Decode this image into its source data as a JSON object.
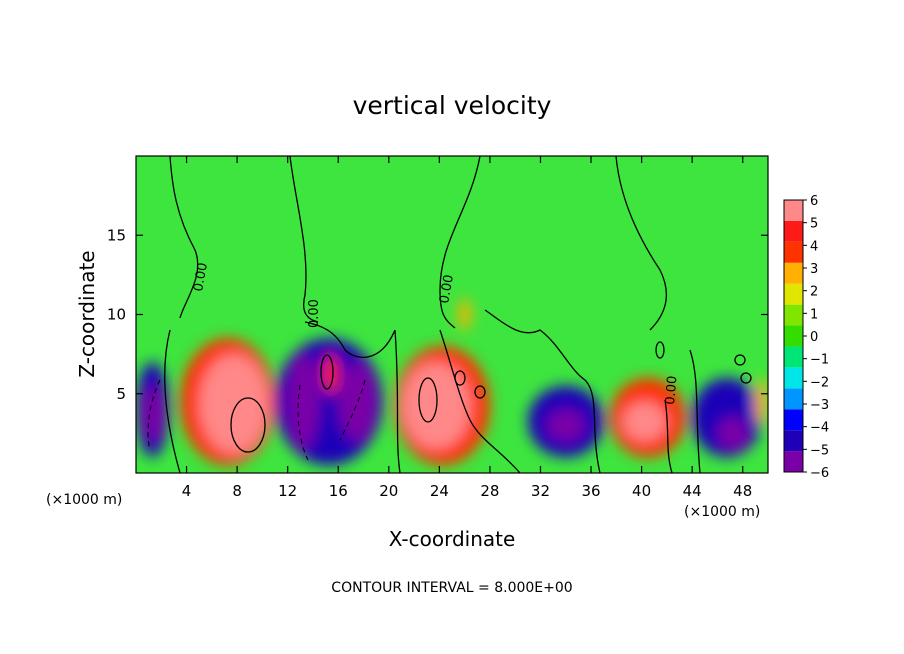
{
  "chart_data": {
    "type": "heatmap",
    "title": "vertical velocity",
    "xlabel": "X-coordinate",
    "ylabel": "Z-coordinate",
    "x_unit_left": "(×1000 m)",
    "x_unit_right": "(×1000 m)",
    "xlim": [
      0,
      50
    ],
    "ylim": [
      0,
      20
    ],
    "x_ticks": [
      4,
      8,
      12,
      16,
      20,
      24,
      28,
      32,
      36,
      40,
      44,
      48
    ],
    "y_ticks": [
      5,
      10,
      15
    ],
    "footer": "CONTOUR INTERVAL = 8.000E+00",
    "contour_labels": [
      "0.00",
      "0.00",
      "0.00",
      "0.00"
    ],
    "colorbar": {
      "levels": [
        -6,
        -5,
        -4,
        -3,
        -2,
        -1,
        0,
        1,
        2,
        3,
        4,
        5,
        6
      ],
      "labels": [
        "6",
        "5",
        "4",
        "3",
        "2",
        "1",
        "0",
        "−1",
        "−2",
        "−3",
        "−4",
        "−5",
        "−6"
      ],
      "colors": [
        "#7a00a8",
        "#1f00b8",
        "#0000ff",
        "#0096ff",
        "#00e6e6",
        "#00e676",
        "#33dd00",
        "#80e600",
        "#e0e600",
        "#ffb000",
        "#ff3300",
        "#ff1a1a",
        "#ff8888"
      ]
    },
    "background_color": "#3ee53e",
    "cells": [
      {
        "x": [
          0.0,
          2.6
        ],
        "z": [
          1.0,
          7.0
        ],
        "w": -5
      },
      {
        "x": [
          0.5,
          2.2
        ],
        "z": [
          2.0,
          5.5
        ],
        "w": -6
      },
      {
        "x": [
          3.5,
          11.0
        ],
        "z": [
          0.5,
          8.5
        ],
        "w": 4
      },
      {
        "x": [
          5.0,
          10.5
        ],
        "z": [
          1.2,
          7.5
        ],
        "w": 6
      },
      {
        "x": [
          11.0,
          19.5
        ],
        "z": [
          0.5,
          8.5
        ],
        "w": -5
      },
      {
        "x": [
          12.0,
          14.5
        ],
        "z": [
          1.5,
          7.5
        ],
        "w": -6
      },
      {
        "x": [
          14.8,
          16.0
        ],
        "z": [
          5.0,
          7.5
        ],
        "w": 5
      },
      {
        "x": [
          16.0,
          19.0
        ],
        "z": [
          2.0,
          7.0
        ],
        "w": -6
      },
      {
        "x": [
          20.5,
          28.0
        ],
        "z": [
          0.5,
          8.0
        ],
        "w": 4
      },
      {
        "x": [
          21.0,
          26.5
        ],
        "z": [
          1.5,
          7.0
        ],
        "w": 6
      },
      {
        "x": [
          25.5,
          26.5
        ],
        "z": [
          9.0,
          11.0
        ],
        "w": 3
      },
      {
        "x": [
          31.0,
          37.0
        ],
        "z": [
          1.0,
          5.5
        ],
        "w": -5
      },
      {
        "x": [
          32.5,
          35.5
        ],
        "z": [
          2.0,
          4.0
        ],
        "w": -6
      },
      {
        "x": [
          37.5,
          43.5
        ],
        "z": [
          1.0,
          6.0
        ],
        "w": 4
      },
      {
        "x": [
          38.5,
          42.0
        ],
        "z": [
          2.0,
          4.5
        ],
        "w": 6
      },
      {
        "x": [
          44.0,
          49.5
        ],
        "z": [
          1.0,
          6.0
        ],
        "w": -5
      },
      {
        "x": [
          46.0,
          48.5
        ],
        "z": [
          1.5,
          3.5
        ],
        "w": -6
      },
      {
        "x": [
          49.0,
          50.0
        ],
        "z": [
          3.0,
          6.0
        ],
        "w": 3
      }
    ]
  }
}
